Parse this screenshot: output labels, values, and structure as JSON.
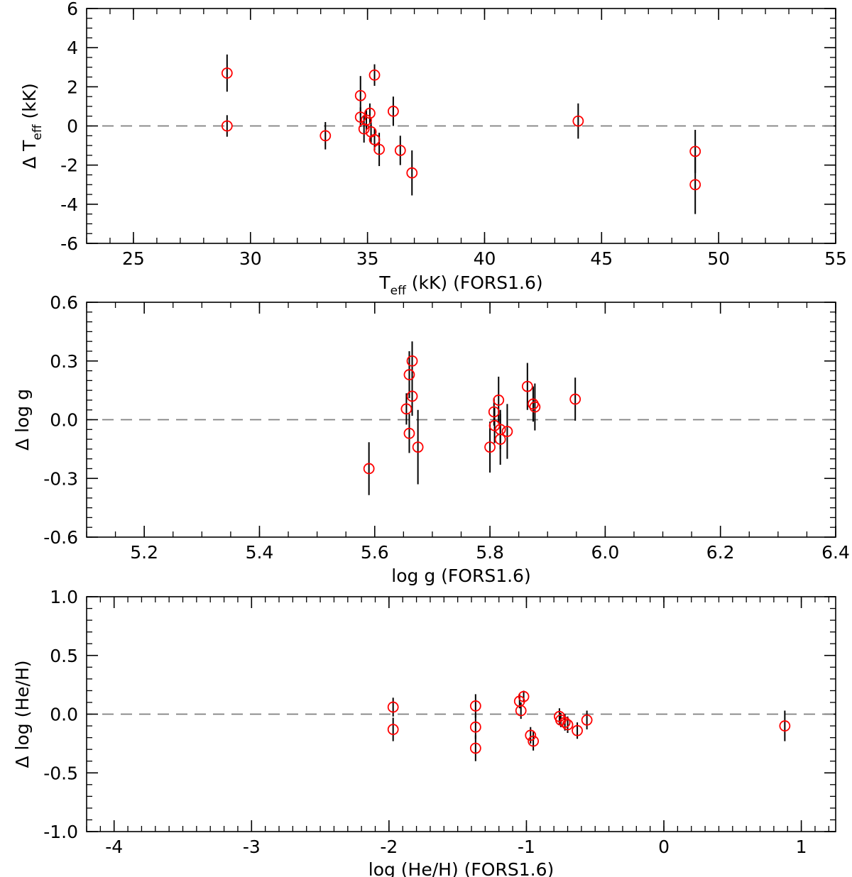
{
  "chart_data": [
    {
      "type": "scatter",
      "xlabel": "T_eff (kK) (FORS1.6)",
      "xlabel_main": "T",
      "xlabel_sub": "eff",
      "xlabel_rest": " (kK) (FORS1.6)",
      "ylabel": "Δ T_eff (kK)",
      "ylabel_main": "Δ T",
      "ylabel_sub": "eff",
      "ylabel_rest": " (kK)",
      "xlim": [
        23,
        55
      ],
      "ylim": [
        -6,
        6
      ],
      "xticks": [
        25,
        30,
        35,
        40,
        45,
        50,
        55
      ],
      "xtick_labels": [
        "25",
        "30",
        "35",
        "40",
        "45",
        "50",
        "55"
      ],
      "yticks": [
        -6,
        -4,
        -2,
        0,
        2,
        4,
        6
      ],
      "ytick_labels": [
        "-6",
        "-4",
        "-2",
        "0",
        "2",
        "4",
        "6"
      ],
      "x_minor_step": 1,
      "y_minor_step": 0.5,
      "reference_line": 0,
      "points": [
        {
          "x": 29.0,
          "y": 2.7,
          "err": 0.95
        },
        {
          "x": 29.0,
          "y": 0.0,
          "err": 0.55
        },
        {
          "x": 33.2,
          "y": -0.5,
          "err": 0.7
        },
        {
          "x": 34.7,
          "y": 1.55,
          "err": 1.0
        },
        {
          "x": 34.7,
          "y": 0.45,
          "err": 0.5
        },
        {
          "x": 34.85,
          "y": -0.15,
          "err": 0.7
        },
        {
          "x": 34.95,
          "y": 0.3,
          "err": 0.5
        },
        {
          "x": 35.1,
          "y": 0.65,
          "err": 0.5
        },
        {
          "x": 35.15,
          "y": -0.3,
          "err": 0.6
        },
        {
          "x": 35.3,
          "y": 2.6,
          "err": 0.55
        },
        {
          "x": 35.3,
          "y": -0.7,
          "err": 0.55
        },
        {
          "x": 35.5,
          "y": -1.2,
          "err": 0.85
        },
        {
          "x": 36.1,
          "y": 0.75,
          "err": 0.75
        },
        {
          "x": 36.4,
          "y": -1.25,
          "err": 0.75
        },
        {
          "x": 36.9,
          "y": -2.4,
          "err": 1.15
        },
        {
          "x": 44.0,
          "y": 0.25,
          "err": 0.9
        },
        {
          "x": 49.0,
          "y": -1.3,
          "err": 1.1
        },
        {
          "x": 49.0,
          "y": -3.0,
          "err": 1.5
        }
      ]
    },
    {
      "type": "scatter",
      "xlabel": "log g (FORS1.6)",
      "ylabel": "Δ log g",
      "xlim": [
        5.1,
        6.4
      ],
      "ylim": [
        -0.6,
        0.6
      ],
      "xticks": [
        5.2,
        5.4,
        5.6,
        5.8,
        6.0,
        6.2,
        6.4
      ],
      "xtick_labels": [
        "5.2",
        "5.4",
        "5.6",
        "5.8",
        "6.0",
        "6.2",
        "6.4"
      ],
      "yticks": [
        -0.6,
        -0.3,
        0.0,
        0.3,
        0.6
      ],
      "ytick_labels": [
        "-0.6",
        "-0.3",
        "0.0",
        "0.3",
        "0.6"
      ],
      "x_minor_step": 0.05,
      "y_minor_step": 0.05,
      "reference_line": 0,
      "points": [
        {
          "x": 5.59,
          "y": -0.25,
          "err": 0.135
        },
        {
          "x": 5.655,
          "y": 0.055,
          "err": 0.08
        },
        {
          "x": 5.66,
          "y": 0.23,
          "err": 0.12
        },
        {
          "x": 5.66,
          "y": -0.07,
          "err": 0.1
        },
        {
          "x": 5.665,
          "y": 0.3,
          "err": 0.1
        },
        {
          "x": 5.665,
          "y": 0.12,
          "err": 0.1
        },
        {
          "x": 5.675,
          "y": -0.14,
          "err": 0.19
        },
        {
          "x": 5.8,
          "y": -0.14,
          "err": 0.13
        },
        {
          "x": 5.807,
          "y": 0.04,
          "err": 0.07
        },
        {
          "x": 5.808,
          "y": -0.03,
          "err": 0.09
        },
        {
          "x": 5.815,
          "y": 0.1,
          "err": 0.12
        },
        {
          "x": 5.818,
          "y": -0.05,
          "err": 0.1
        },
        {
          "x": 5.818,
          "y": -0.1,
          "err": 0.13
        },
        {
          "x": 5.83,
          "y": -0.06,
          "err": 0.14
        },
        {
          "x": 5.865,
          "y": 0.17,
          "err": 0.12
        },
        {
          "x": 5.875,
          "y": 0.08,
          "err": 0.09
        },
        {
          "x": 5.878,
          "y": 0.065,
          "err": 0.12
        },
        {
          "x": 5.948,
          "y": 0.105,
          "err": 0.11
        }
      ]
    },
    {
      "type": "scatter",
      "xlabel": "log (He/H) (FORS1.6)",
      "ylabel": "Δ log (He/H)",
      "xlim": [
        -4.2,
        1.25
      ],
      "ylim": [
        -1.0,
        1.0
      ],
      "xticks": [
        -4,
        -3,
        -2,
        -1,
        0,
        1
      ],
      "xtick_labels": [
        "-4",
        "-3",
        "-2",
        "-1",
        "0",
        "1"
      ],
      "yticks": [
        -1.0,
        -0.5,
        0.0,
        0.5,
        1.0
      ],
      "ytick_labels": [
        "-1.0",
        "-0.5",
        "0.0",
        "0.5",
        "1.0"
      ],
      "x_minor_step": 0.1,
      "y_minor_step": 0.1,
      "reference_line": 0,
      "points": [
        {
          "x": -1.97,
          "y": 0.06,
          "err": 0.08
        },
        {
          "x": -1.97,
          "y": -0.13,
          "err": 0.1
        },
        {
          "x": -1.37,
          "y": 0.07,
          "err": 0.1
        },
        {
          "x": -1.37,
          "y": -0.11,
          "err": 0.1
        },
        {
          "x": -1.37,
          "y": -0.29,
          "err": 0.11
        },
        {
          "x": -1.05,
          "y": 0.11,
          "err": 0.06
        },
        {
          "x": -1.04,
          "y": 0.03,
          "err": 0.07
        },
        {
          "x": -1.02,
          "y": 0.15,
          "err": 0.05
        },
        {
          "x": -0.97,
          "y": -0.18,
          "err": 0.07
        },
        {
          "x": -0.95,
          "y": -0.23,
          "err": 0.08
        },
        {
          "x": -0.76,
          "y": -0.02,
          "err": 0.07
        },
        {
          "x": -0.75,
          "y": -0.05,
          "err": 0.06
        },
        {
          "x": -0.72,
          "y": -0.07,
          "err": 0.07
        },
        {
          "x": -0.7,
          "y": -0.09,
          "err": 0.07
        },
        {
          "x": -0.63,
          "y": -0.14,
          "err": 0.07
        },
        {
          "x": -0.56,
          "y": -0.05,
          "err": 0.08
        },
        {
          "x": 0.88,
          "y": -0.1,
          "err": 0.13
        }
      ]
    }
  ],
  "colors": {
    "marker": "#ff0000",
    "errorbar": "#000000",
    "reference_line": "#808080",
    "axes": "#000000"
  }
}
